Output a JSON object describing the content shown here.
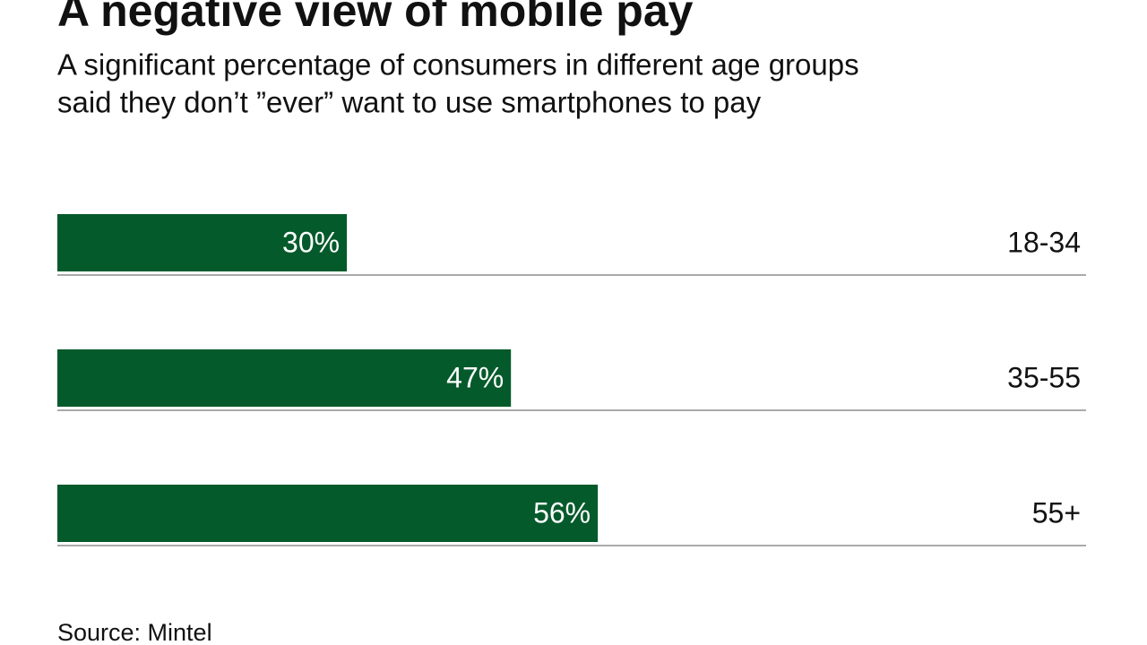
{
  "chart_data": {
    "type": "bar",
    "orientation": "horizontal",
    "title": "A negative view of mobile pay",
    "subtitle": [
      "A significant percentage of consumers in different age groups",
      "said they don’t ”ever” want to use smartphones to pay"
    ],
    "categories": [
      "18-34",
      "35-55",
      "55+"
    ],
    "values": [
      30,
      47,
      56
    ],
    "value_labels": [
      "30%",
      "47%",
      "56%"
    ],
    "color": "#055a2b",
    "source": "Source: Mintel"
  }
}
